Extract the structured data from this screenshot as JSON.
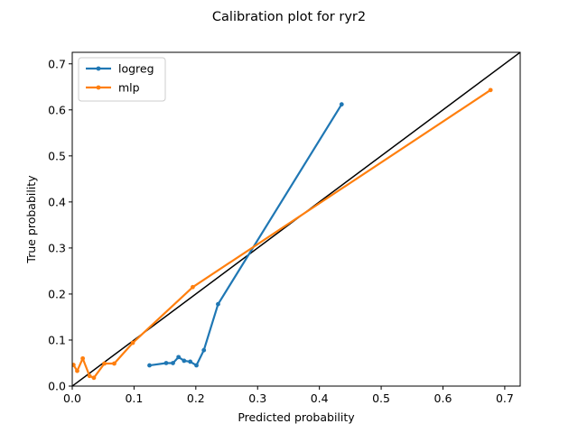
{
  "chart_data": {
    "type": "line",
    "title": "Calibration plot for ryr2",
    "xlabel": "Predicted probability",
    "ylabel": "True probability",
    "xlim": [
      0,
      0.725
    ],
    "ylim": [
      0,
      0.725
    ],
    "xticks": [
      "0.0",
      "0.1",
      "0.2",
      "0.3",
      "0.4",
      "0.5",
      "0.6",
      "0.7"
    ],
    "yticks": [
      "0.0",
      "0.1",
      "0.2",
      "0.3",
      "0.4",
      "0.5",
      "0.6",
      "0.7"
    ],
    "grid": false,
    "legend_position": "top-left",
    "reference_line": {
      "x": [
        0,
        0.725
      ],
      "y": [
        0,
        0.725
      ],
      "color": "#000000"
    },
    "series": [
      {
        "name": "logreg",
        "color": "#1f77b4",
        "x": [
          0.125,
          0.152,
          0.163,
          0.172,
          0.181,
          0.191,
          0.201,
          0.213,
          0.236,
          0.436
        ],
        "y": [
          0.045,
          0.05,
          0.05,
          0.063,
          0.055,
          0.053,
          0.045,
          0.078,
          0.178,
          0.612
        ]
      },
      {
        "name": "mlp",
        "color": "#ff7f0e",
        "x": [
          0.002,
          0.008,
          0.017,
          0.028,
          0.035,
          0.052,
          0.068,
          0.098,
          0.195,
          0.677
        ],
        "y": [
          0.046,
          0.033,
          0.06,
          0.022,
          0.018,
          0.049,
          0.049,
          0.094,
          0.215,
          0.643
        ]
      }
    ]
  }
}
